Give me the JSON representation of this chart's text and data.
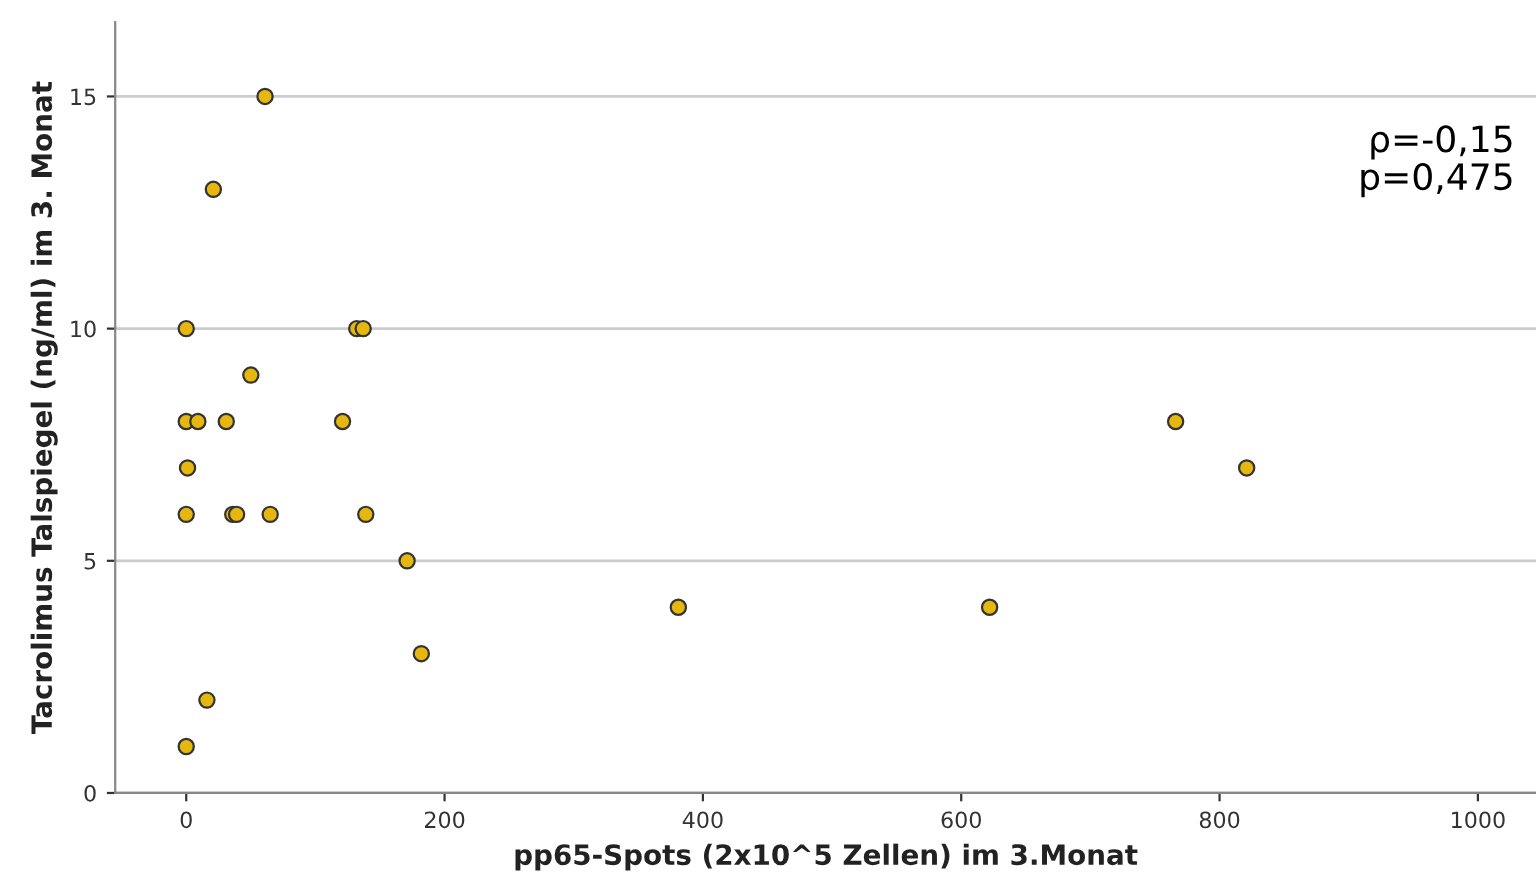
{
  "chart_data": {
    "type": "scatter",
    "xlabel": "pp65-Spots (2x10^5 Zellen) im 3.Monat",
    "ylabel": "Tacrolimus Talspiegel (ng/ml) im 3. Monat",
    "x": [
      61,
      21,
      0,
      132,
      137,
      50,
      0,
      9,
      31,
      121,
      1,
      0,
      36,
      39,
      65,
      139,
      171,
      182,
      16,
      0,
      381,
      622,
      766,
      821
    ],
    "series": [
      {
        "color": "#e6b80f",
        "values": [
          15,
          13,
          10,
          10,
          10,
          9,
          8,
          8,
          8,
          8,
          7,
          6,
          6,
          6,
          6,
          6,
          5,
          3,
          2,
          1,
          4,
          4,
          8,
          7
        ]
      }
    ],
    "xlim": [
      -55,
      1045
    ],
    "ylim": [
      0,
      16.6
    ],
    "xticks": [
      0,
      200,
      400,
      600,
      800,
      1000
    ],
    "yticks": [
      0,
      5,
      10,
      15
    ],
    "grid": "y",
    "marker": "circle",
    "annotations": [
      "ρ=-0,15\np=0,475"
    ]
  }
}
